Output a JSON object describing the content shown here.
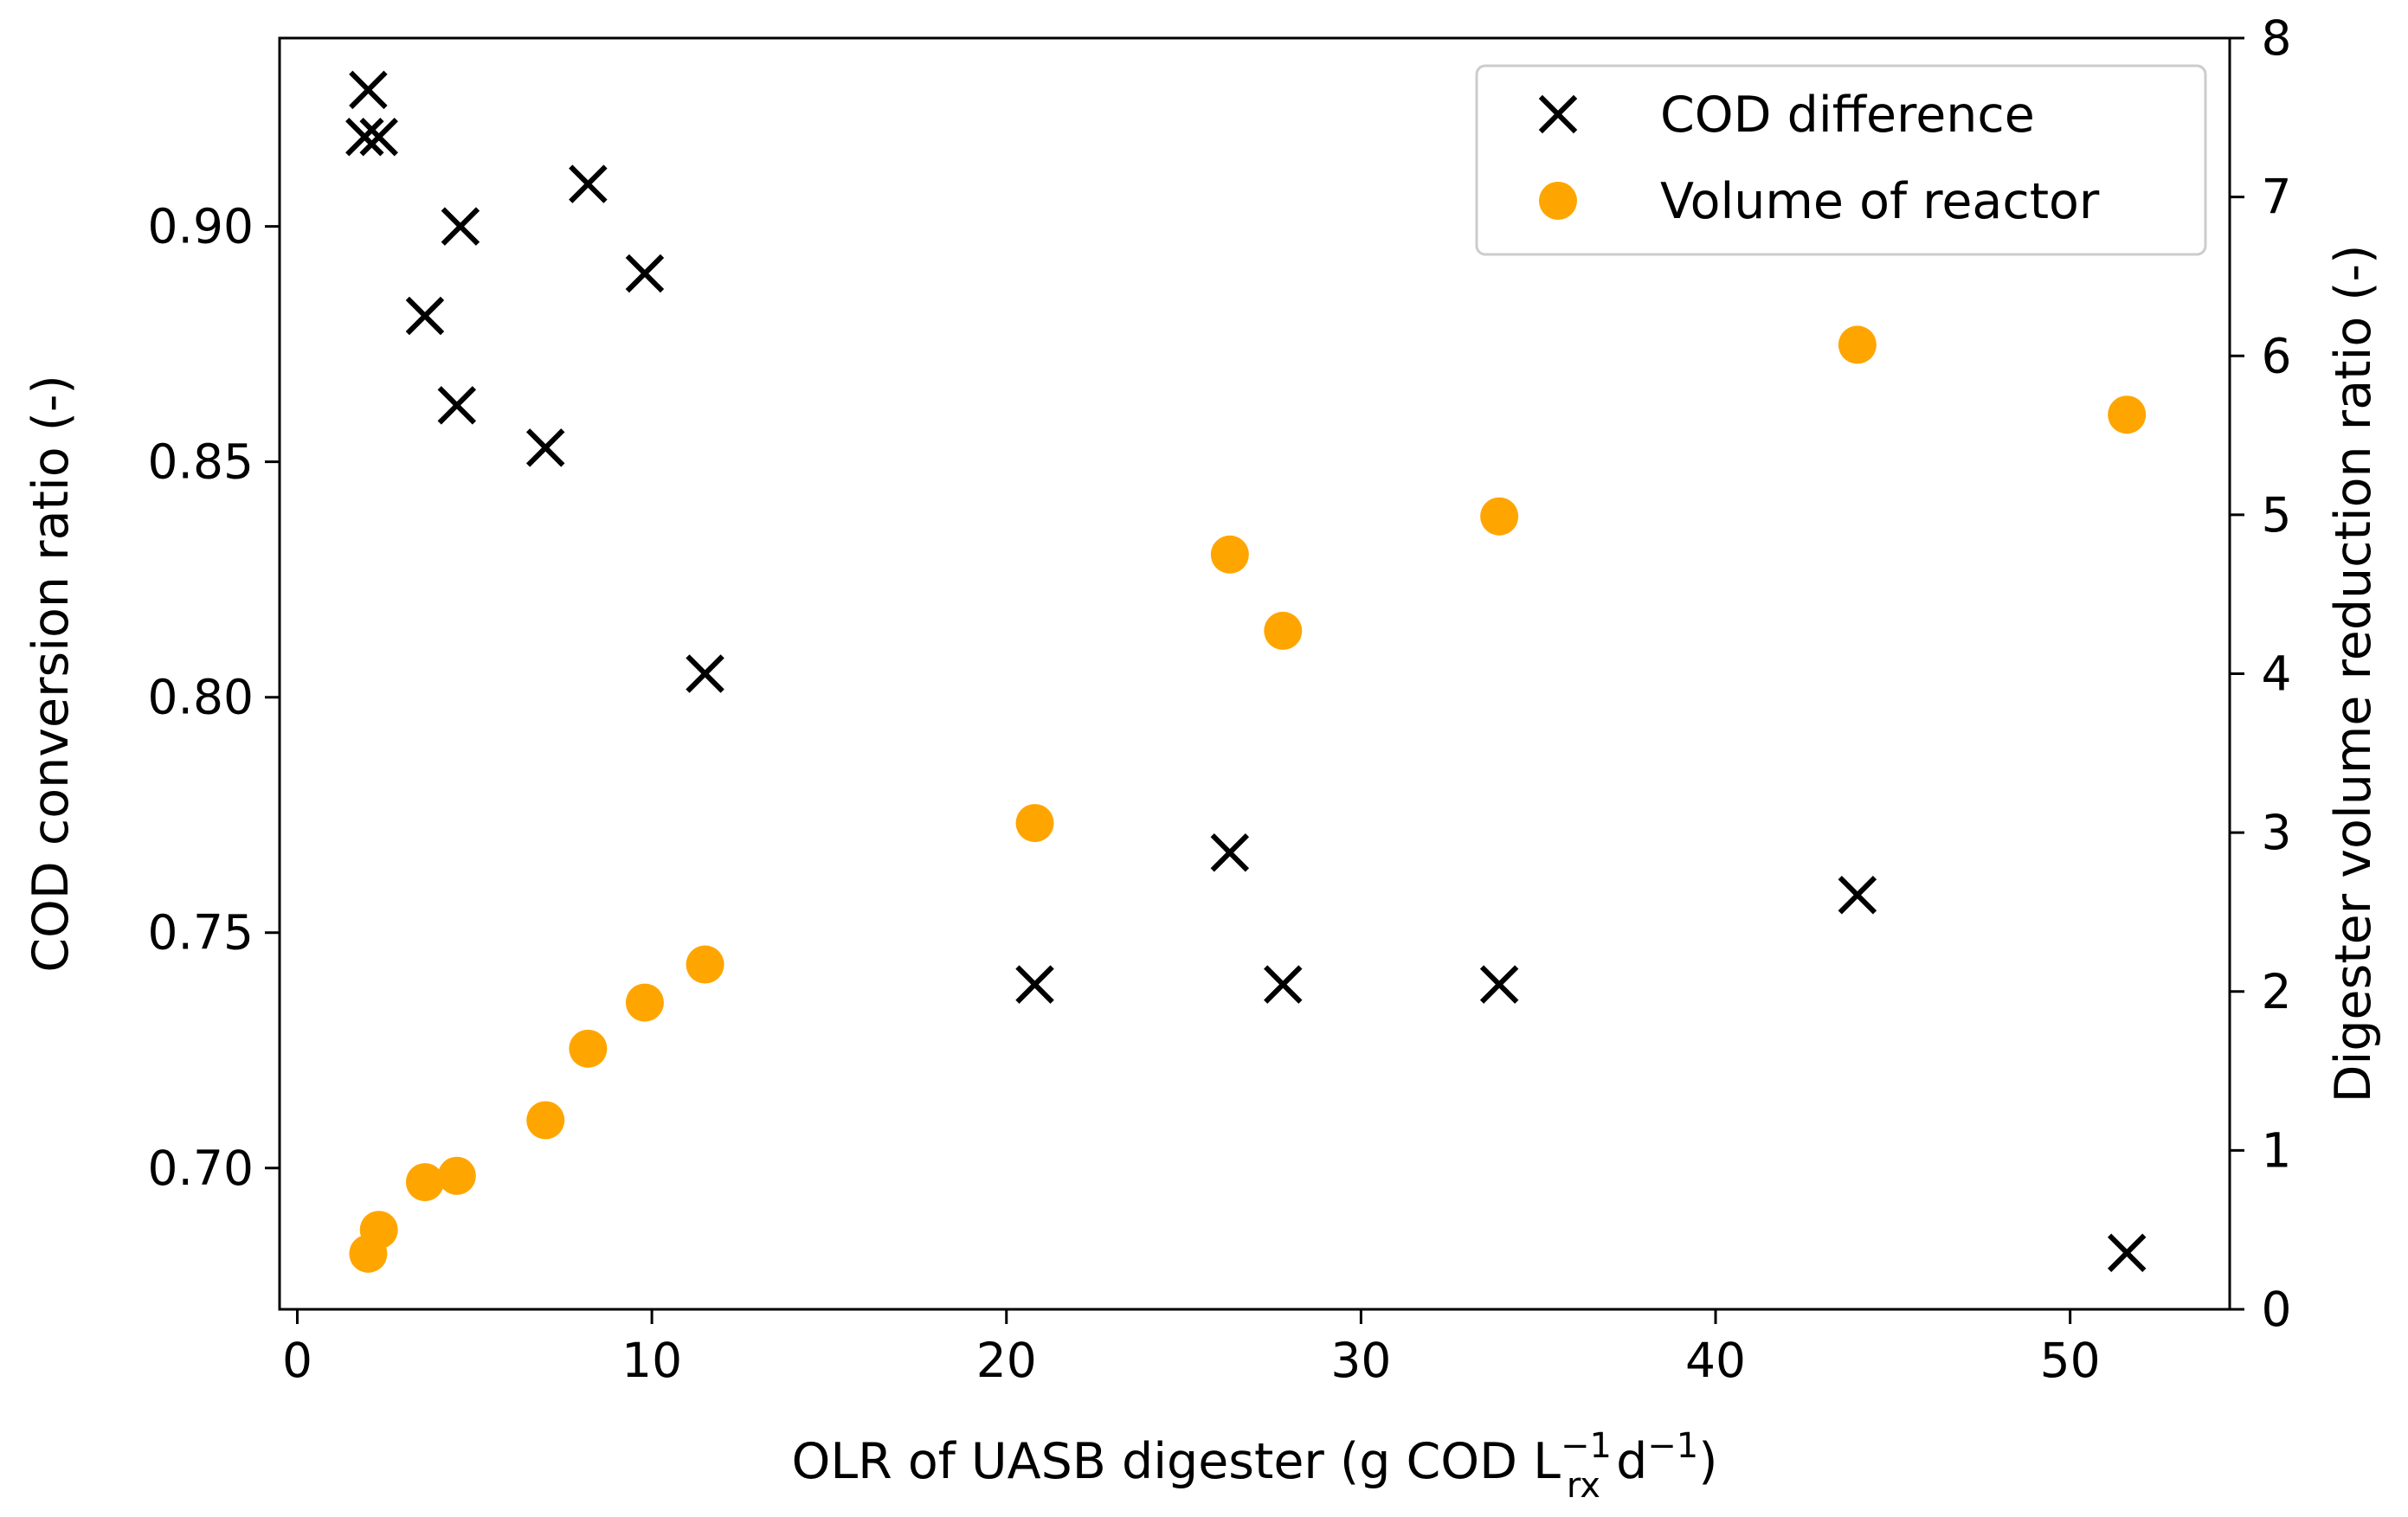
{
  "chart_data": {
    "type": "scatter",
    "title": "",
    "x_axis": {
      "label_main": "OLR of UASB digester (g COD L",
      "label_sub": "rx",
      "label_sup": "−1",
      "label_tail": " d",
      "label_sup2": "−1",
      "label_close": ")",
      "range": [
        -0.5,
        54.5
      ],
      "ticks": [
        0,
        10,
        20,
        30,
        40,
        50
      ],
      "tick_labels": [
        "0",
        "10",
        "20",
        "30",
        "40",
        "50"
      ]
    },
    "y_left": {
      "label": "COD conversion ratio (-)",
      "range": [
        0.67,
        0.94
      ],
      "ticks": [
        0.7,
        0.75,
        0.8,
        0.85,
        0.9
      ],
      "tick_labels": [
        "0.70",
        "0.75",
        "0.80",
        "0.85",
        "0.90"
      ]
    },
    "y_right": {
      "label": "Digester volume reduction ratio (-)",
      "range": [
        0,
        8
      ],
      "ticks": [
        0,
        1,
        2,
        3,
        4,
        5,
        6,
        7,
        8
      ],
      "tick_labels": [
        "0",
        "1",
        "2",
        "3",
        "4",
        "5",
        "6",
        "7",
        "8"
      ]
    },
    "grid": false,
    "legend_position": "top-right",
    "series": [
      {
        "name": "COD difference",
        "axis": "left",
        "marker": "x",
        "color": "#000000",
        "points": [
          {
            "x": 2.0,
            "y": 0.929
          },
          {
            "x": 1.9,
            "y": 0.919
          },
          {
            "x": 2.3,
            "y": 0.919
          },
          {
            "x": 3.6,
            "y": 0.881
          },
          {
            "x": 4.5,
            "y": 0.862
          },
          {
            "x": 4.6,
            "y": 0.9
          },
          {
            "x": 7.0,
            "y": 0.853
          },
          {
            "x": 8.2,
            "y": 0.909
          },
          {
            "x": 9.8,
            "y": 0.89
          },
          {
            "x": 11.5,
            "y": 0.805
          },
          {
            "x": 20.8,
            "y": 0.739
          },
          {
            "x": 26.3,
            "y": 0.767
          },
          {
            "x": 27.8,
            "y": 0.739
          },
          {
            "x": 33.9,
            "y": 0.739
          },
          {
            "x": 44.0,
            "y": 0.758
          },
          {
            "x": 51.6,
            "y": 0.682
          }
        ]
      },
      {
        "name": "Volume of reactor",
        "axis": "right",
        "marker": "circle",
        "color": "#ffa500",
        "points": [
          {
            "x": 2.0,
            "y": 0.35
          },
          {
            "x": 2.3,
            "y": 0.5
          },
          {
            "x": 3.6,
            "y": 0.8
          },
          {
            "x": 4.5,
            "y": 0.84
          },
          {
            "x": 7.0,
            "y": 1.19
          },
          {
            "x": 8.2,
            "y": 1.64
          },
          {
            "x": 9.8,
            "y": 1.93
          },
          {
            "x": 11.5,
            "y": 2.17
          },
          {
            "x": 20.8,
            "y": 3.06
          },
          {
            "x": 26.3,
            "y": 4.75
          },
          {
            "x": 27.8,
            "y": 4.27
          },
          {
            "x": 33.9,
            "y": 4.99
          },
          {
            "x": 44.0,
            "y": 6.07
          },
          {
            "x": 51.6,
            "y": 5.63
          }
        ]
      }
    ]
  }
}
